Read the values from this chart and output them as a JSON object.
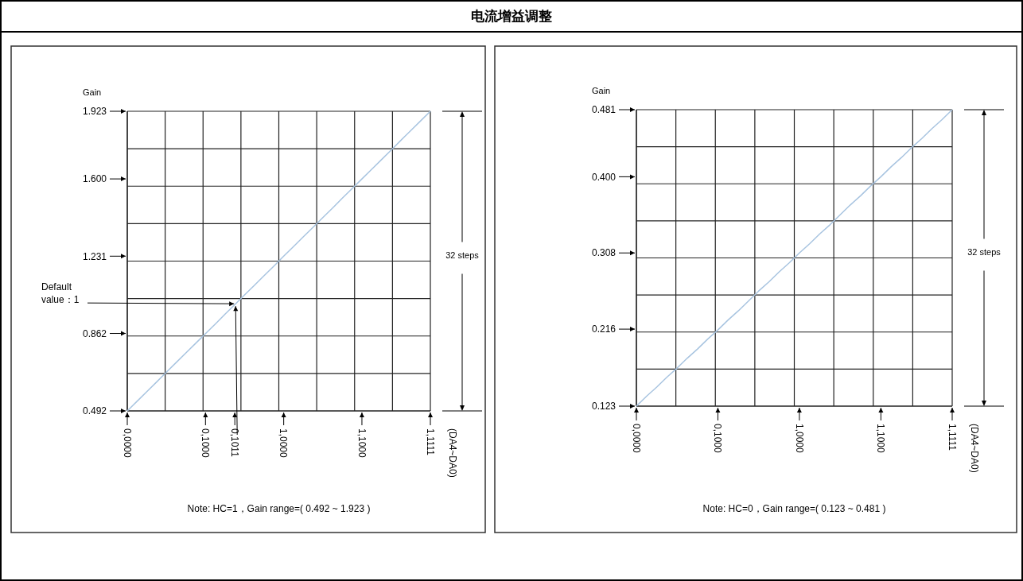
{
  "chart_data": [
    {
      "type": "line",
      "ylabel": "Gain",
      "ylim": [
        0.492,
        1.923
      ],
      "categories": [
        "0,0000",
        null,
        null,
        null,
        null,
        null,
        null,
        null,
        "0,1000",
        null,
        null,
        "0,1011",
        null,
        null,
        null,
        null,
        "1,0000",
        null,
        null,
        null,
        null,
        null,
        null,
        null,
        "1,1000",
        null,
        null,
        null,
        null,
        null,
        null,
        "1,1111"
      ],
      "yticks": [
        0.492,
        0.862,
        1.231,
        {
          "value": 1.6,
          "label": "1.600"
        },
        1.923
      ],
      "series": [
        {
          "color": "#a8c4e0",
          "values": [
            0.492,
            0.538,
            0.584,
            0.63,
            0.677,
            0.723,
            0.769,
            0.815,
            0.861,
            0.907,
            0.954,
            1.0,
            1.046,
            1.092,
            1.138,
            1.184,
            1.231,
            1.277,
            1.323,
            1.369,
            1.415,
            1.461,
            1.508,
            1.554,
            1.6,
            1.646,
            1.692,
            1.738,
            1.785,
            1.831,
            1.877,
            1.923
          ]
        }
      ],
      "grid": true,
      "annotations": [
        "电流增益调整",
        {
          "text": "Default value：1",
          "x": "0,1011",
          "y": 1
        },
        "(DA4~DA0)",
        "32 steps",
        "Note: HC=1，Gain range=( 0.492 ~ 1.923 )"
      ]
    },
    {
      "type": "line",
      "ylabel": "Gain",
      "ylim": [
        0.123,
        0.481
      ],
      "categories": [
        "0,0000",
        null,
        null,
        null,
        null,
        null,
        null,
        null,
        "0,1000",
        null,
        null,
        null,
        null,
        null,
        null,
        null,
        "1,0000",
        null,
        null,
        null,
        null,
        null,
        null,
        null,
        "1,1000",
        null,
        null,
        null,
        null,
        null,
        null,
        "1,1111"
      ],
      "yticks": [
        0.123,
        0.216,
        0.308,
        {
          "value": 0.4,
          "label": "0.400"
        },
        0.481
      ],
      "series": [
        {
          "color": "#a8c4e0",
          "values": [
            0.123,
            0.135,
            0.146,
            0.158,
            0.169,
            0.181,
            0.192,
            0.204,
            0.215,
            0.227,
            0.238,
            0.25,
            0.262,
            0.273,
            0.285,
            0.296,
            0.308,
            0.319,
            0.331,
            0.342,
            0.354,
            0.366,
            0.377,
            0.389,
            0.4,
            0.412,
            0.423,
            0.435,
            0.446,
            0.458,
            0.469,
            0.481
          ]
        }
      ],
      "grid": true,
      "annotations": [
        "(DA4~DA0)",
        "32 steps",
        "Note: HC=0，Gain range=( 0.123 ~ 0.481 )"
      ]
    }
  ]
}
